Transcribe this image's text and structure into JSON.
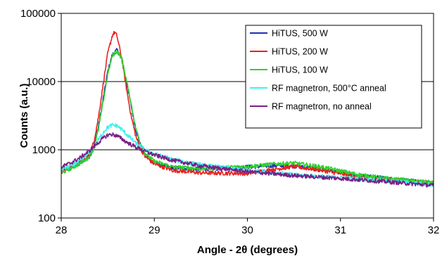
{
  "chart_data": {
    "type": "line",
    "title": "",
    "xlabel": "Angle - 2θ (degrees)",
    "ylabel": "Counts  (a.u.)",
    "xlim": [
      28,
      32
    ],
    "ylim": [
      100,
      100000
    ],
    "yscale": "log",
    "grid": "horizontal",
    "legend_position": "top-right",
    "x_ticks": [
      "28",
      "29",
      "30",
      "31",
      "32"
    ],
    "y_ticks": [
      "100",
      "1000",
      "10000",
      "100000"
    ],
    "series": [
      {
        "name": "HiTUS, 500 W",
        "color": "#1f2fb5",
        "x": [
          28.0,
          28.1,
          28.2,
          28.3,
          28.35,
          28.4,
          28.45,
          28.5,
          28.55,
          28.6,
          28.65,
          28.7,
          28.75,
          28.8,
          28.85,
          28.9,
          29.0,
          29.2,
          29.5,
          30.0,
          30.3,
          30.5,
          30.8,
          31.2,
          31.5,
          32.0
        ],
        "y": [
          500,
          560,
          650,
          800,
          1100,
          2200,
          5500,
          14000,
          25000,
          29000,
          22000,
          10000,
          4500,
          2000,
          1200,
          850,
          650,
          540,
          520,
          560,
          590,
          580,
          520,
          420,
          380,
          330
        ]
      },
      {
        "name": "HiTUS, 200 W",
        "color": "#e8231e",
        "x": [
          28.0,
          28.1,
          28.2,
          28.3,
          28.35,
          28.4,
          28.45,
          28.5,
          28.55,
          28.575,
          28.6,
          28.65,
          28.7,
          28.75,
          28.8,
          28.85,
          28.9,
          29.0,
          29.2,
          29.5,
          30.0,
          30.3,
          30.5,
          30.8,
          31.2,
          31.5,
          32.0
        ],
        "y": [
          480,
          540,
          640,
          820,
          1300,
          3000,
          9000,
          26000,
          48000,
          53000,
          46000,
          22000,
          8000,
          3200,
          1600,
          1050,
          800,
          620,
          500,
          460,
          450,
          520,
          570,
          500,
          400,
          370,
          320
        ]
      },
      {
        "name": "HiTUS, 100 W",
        "color": "#2ed32b",
        "x": [
          28.0,
          28.1,
          28.2,
          28.3,
          28.35,
          28.4,
          28.45,
          28.5,
          28.55,
          28.6,
          28.65,
          28.7,
          28.75,
          28.8,
          28.85,
          28.9,
          29.0,
          29.2,
          29.5,
          30.0,
          30.3,
          30.5,
          30.8,
          31.2,
          31.5,
          32.0
        ],
        "y": [
          460,
          530,
          630,
          780,
          1050,
          2000,
          5000,
          13000,
          24000,
          28000,
          22000,
          10500,
          4800,
          2100,
          1250,
          880,
          680,
          560,
          530,
          570,
          620,
          640,
          560,
          430,
          380,
          330
        ]
      },
      {
        "name": "RF magnetron, 500°C anneal",
        "color": "#3ff0f0",
        "x": [
          28.0,
          28.1,
          28.2,
          28.3,
          28.4,
          28.45,
          28.5,
          28.55,
          28.6,
          28.65,
          28.7,
          28.8,
          28.9,
          29.0,
          29.2,
          29.5,
          30.0,
          30.5,
          31.0,
          31.5,
          32.0
        ],
        "y": [
          520,
          580,
          680,
          900,
          1400,
          1800,
          2150,
          2300,
          2250,
          2000,
          1700,
          1250,
          1000,
          870,
          720,
          600,
          500,
          430,
          390,
          350,
          310
        ]
      },
      {
        "name": "RF magnetron, no anneal",
        "color": "#7a1f86",
        "x": [
          28.0,
          28.1,
          28.2,
          28.3,
          28.4,
          28.45,
          28.5,
          28.55,
          28.6,
          28.65,
          28.7,
          28.8,
          28.9,
          29.0,
          29.2,
          29.5,
          30.0,
          30.5,
          31.0,
          31.5,
          32.0
        ],
        "y": [
          560,
          640,
          760,
          960,
          1280,
          1480,
          1650,
          1680,
          1600,
          1450,
          1300,
          1100,
          950,
          840,
          700,
          580,
          480,
          420,
          380,
          340,
          300
        ]
      }
    ]
  }
}
